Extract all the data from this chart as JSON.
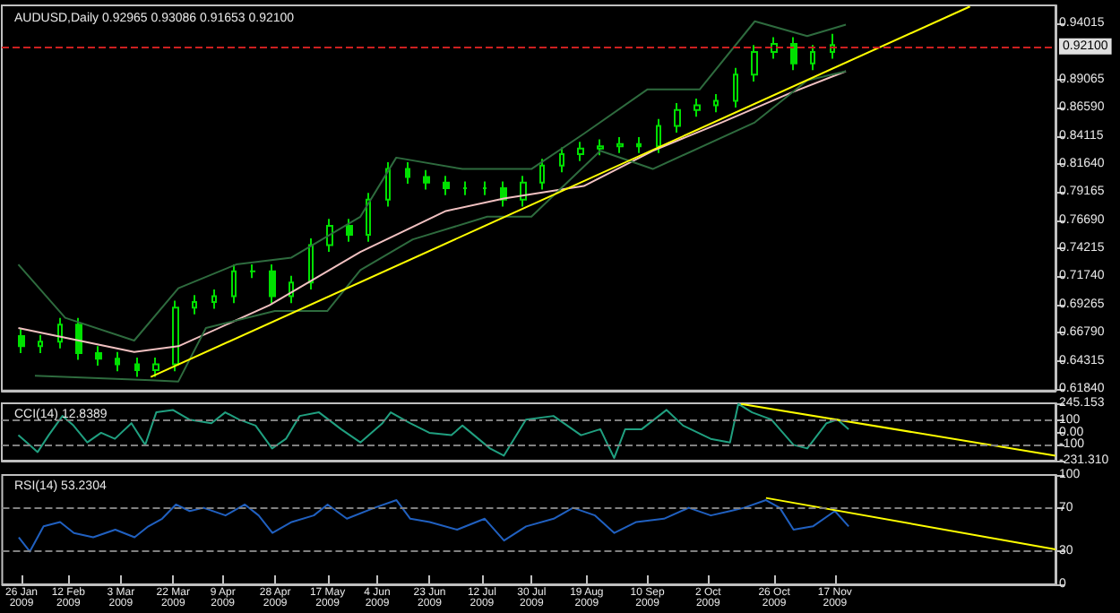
{
  "chart_data": [
    {
      "type": "candlestick",
      "title": "AUDUSD,Daily 0.92965 0.93086 0.91653 0.92100",
      "color": "#00e000",
      "x": [
        "2009-01-26",
        "2009-02-02",
        "2009-02-09",
        "2009-02-16",
        "2009-02-23",
        "2009-03-02",
        "2009-03-09",
        "2009-03-16",
        "2009-03-23",
        "2009-03-30",
        "2009-04-06",
        "2009-04-13",
        "2009-04-20",
        "2009-04-27",
        "2009-05-04",
        "2009-05-11",
        "2009-05-18",
        "2009-05-25",
        "2009-06-01",
        "2009-06-08",
        "2009-06-15",
        "2009-06-22",
        "2009-06-29",
        "2009-07-06",
        "2009-07-13",
        "2009-07-20",
        "2009-07-27",
        "2009-08-03",
        "2009-08-10",
        "2009-08-17",
        "2009-08-24",
        "2009-08-31",
        "2009-09-07",
        "2009-09-14",
        "2009-09-21",
        "2009-09-28",
        "2009-10-05",
        "2009-10-12",
        "2009-10-19",
        "2009-10-26",
        "2009-11-02",
        "2009-11-09",
        "2009-11-16"
      ],
      "ohlc": [
        [
          0.665,
          0.671,
          0.65,
          0.656
        ],
        [
          0.656,
          0.666,
          0.65,
          0.66
        ],
        [
          0.66,
          0.681,
          0.654,
          0.675
        ],
        [
          0.675,
          0.681,
          0.644,
          0.65
        ],
        [
          0.65,
          0.656,
          0.639,
          0.645
        ],
        [
          0.645,
          0.651,
          0.634,
          0.64
        ],
        [
          0.64,
          0.646,
          0.629,
          0.635
        ],
        [
          0.635,
          0.646,
          0.629,
          0.64
        ],
        [
          0.64,
          0.696,
          0.634,
          0.69
        ],
        [
          0.69,
          0.701,
          0.684,
          0.695
        ],
        [
          0.695,
          0.706,
          0.689,
          0.7
        ],
        [
          0.7,
          0.728,
          0.694,
          0.722
        ],
        [
          0.722,
          0.728,
          0.716,
          0.722
        ],
        [
          0.722,
          0.728,
          0.694,
          0.7
        ],
        [
          0.7,
          0.718,
          0.694,
          0.712
        ],
        [
          0.712,
          0.751,
          0.706,
          0.745
        ],
        [
          0.745,
          0.768,
          0.739,
          0.762
        ],
        [
          0.762,
          0.768,
          0.748,
          0.754
        ],
        [
          0.754,
          0.791,
          0.748,
          0.785
        ],
        [
          0.785,
          0.818,
          0.779,
          0.812
        ],
        [
          0.812,
          0.818,
          0.799,
          0.805
        ],
        [
          0.805,
          0.811,
          0.794,
          0.8
        ],
        [
          0.8,
          0.806,
          0.789,
          0.795
        ],
        [
          0.795,
          0.801,
          0.789,
          0.795
        ],
        [
          0.795,
          0.801,
          0.789,
          0.795
        ],
        [
          0.795,
          0.801,
          0.779,
          0.785
        ],
        [
          0.785,
          0.806,
          0.779,
          0.8
        ],
        [
          0.8,
          0.821,
          0.794,
          0.815
        ],
        [
          0.815,
          0.831,
          0.809,
          0.825
        ],
        [
          0.825,
          0.836,
          0.819,
          0.83
        ],
        [
          0.83,
          0.838,
          0.824,
          0.832
        ],
        [
          0.832,
          0.84,
          0.826,
          0.834
        ],
        [
          0.834,
          0.84,
          0.826,
          0.832
        ],
        [
          0.832,
          0.856,
          0.826,
          0.85
        ],
        [
          0.85,
          0.87,
          0.844,
          0.864
        ],
        [
          0.864,
          0.874,
          0.858,
          0.868
        ],
        [
          0.868,
          0.878,
          0.862,
          0.872
        ],
        [
          0.872,
          0.901,
          0.866,
          0.895
        ],
        [
          0.895,
          0.921,
          0.889,
          0.915
        ],
        [
          0.915,
          0.928,
          0.909,
          0.922
        ],
        [
          0.922,
          0.928,
          0.899,
          0.905
        ],
        [
          0.905,
          0.921,
          0.899,
          0.915
        ],
        [
          0.915,
          0.931,
          0.909,
          0.921
        ]
      ],
      "series": [
        {
          "type": "line",
          "color": "#f0c0c0",
          "x": [
            "2009-01-25",
            "2009-03-08",
            "2009-03-24",
            "2009-04-26",
            "2009-05-29",
            "2009-06-29",
            "2009-07-20",
            "2009-08-18",
            "2009-09-12",
            "2009-10-07",
            "2009-11-01",
            "2009-11-21"
          ],
          "values": [
            0.672,
            0.651,
            0.656,
            0.692,
            0.739,
            0.775,
            0.786,
            0.797,
            0.828,
            0.853,
            0.879,
            0.898
          ]
        },
        {
          "type": "line",
          "color": "#2e6b3e",
          "x": [
            "2009-01-25",
            "2009-02-11",
            "2009-03-08",
            "2009-03-24",
            "2009-04-14",
            "2009-05-04",
            "2009-05-29",
            "2009-06-11",
            "2009-07-05",
            "2009-07-30",
            "2009-08-18",
            "2009-09-10",
            "2009-09-29",
            "2009-10-19",
            "2009-11-07",
            "2009-11-21"
          ],
          "values": [
            0.728,
            0.681,
            0.661,
            0.707,
            0.728,
            0.734,
            0.77,
            0.822,
            0.812,
            0.812,
            0.843,
            0.882,
            0.882,
            0.942,
            0.929,
            0.939
          ]
        },
        {
          "type": "line",
          "color": "#2e6b3e",
          "x": [
            "2009-01-31",
            "2009-03-14",
            "2009-03-24",
            "2009-04-03",
            "2009-04-28",
            "2009-05-17",
            "2009-05-29",
            "2009-06-17",
            "2009-07-14",
            "2009-07-30",
            "2009-08-24",
            "2009-09-12",
            "2009-10-19",
            "2009-11-07",
            "2009-11-21"
          ],
          "values": [
            0.63,
            0.626,
            0.625,
            0.672,
            0.687,
            0.687,
            0.723,
            0.75,
            0.77,
            0.77,
            0.828,
            0.812,
            0.853,
            0.89,
            0.898
          ]
        },
        {
          "type": "line",
          "color": "#ffff00",
          "x": [
            "2009-03-14",
            "2010-01-05"
          ],
          "values": [
            0.629,
            0.955
          ]
        }
      ],
      "xlim": [
        "2009-01-19",
        "2010-02-05"
      ],
      "ylim": [
        0.617,
        0.956
      ],
      "yticks": [
        {
          "value": 0.94015,
          "label": "0.94015"
        },
        {
          "value": 0.89065,
          "label": "0.89065"
        },
        {
          "value": 0.8659,
          "label": "0.86590"
        },
        {
          "value": 0.84115,
          "label": "0.84115"
        },
        {
          "value": 0.8164,
          "label": "0.81640"
        },
        {
          "value": 0.79165,
          "label": "0.79165"
        },
        {
          "value": 0.7669,
          "label": "0.76690"
        },
        {
          "value": 0.74215,
          "label": "0.74215"
        },
        {
          "value": 0.7174,
          "label": "0.71740"
        },
        {
          "value": 0.69265,
          "label": "0.69265"
        },
        {
          "value": 0.6679,
          "label": "0.66790"
        },
        {
          "value": 0.64315,
          "label": "0.64315"
        },
        {
          "value": 0.6184,
          "label": "0.61840"
        }
      ],
      "ref_lines": [
        {
          "axis": "y",
          "value": 0.921,
          "label": "0.92100",
          "color": "#cc2020",
          "line_style": "dashed"
        }
      ],
      "tick_labels": "y"
    },
    {
      "type": "line",
      "title": "CCI(14) 12.8389",
      "x": [
        "2009-01-25",
        "2009-01-29",
        "2009-02-01",
        "2009-02-05",
        "2009-02-10",
        "2009-02-14",
        "2009-02-19",
        "2009-02-24",
        "2009-03-01",
        "2009-03-07",
        "2009-03-12",
        "2009-03-16",
        "2009-03-22",
        "2009-03-28",
        "2009-04-05",
        "2009-04-10",
        "2009-04-15",
        "2009-04-21",
        "2009-04-27",
        "2009-05-02",
        "2009-05-07",
        "2009-05-14",
        "2009-05-22",
        "2009-05-29",
        "2009-06-06",
        "2009-06-09",
        "2009-06-16",
        "2009-06-23",
        "2009-07-01",
        "2009-07-05",
        "2009-07-15",
        "2009-07-20",
        "2009-07-28",
        "2009-08-07",
        "2009-08-17",
        "2009-08-24",
        "2009-08-29",
        "2009-09-02",
        "2009-09-08",
        "2009-09-17",
        "2009-09-23",
        "2009-10-03",
        "2009-10-10",
        "2009-10-13",
        "2009-10-18",
        "2009-10-25",
        "2009-11-02",
        "2009-11-07",
        "2009-11-14",
        "2009-11-18",
        "2009-11-22"
      ],
      "series": [
        {
          "color": "#20a080",
          "values": [
            -20,
            -100,
            -160,
            -20,
            140,
            60,
            -80,
            0,
            -50,
            80,
            -100,
            170,
            190,
            110,
            80,
            170,
            110,
            60,
            -130,
            -50,
            140,
            170,
            30,
            -80,
            80,
            170,
            80,
            0,
            -20,
            60,
            -130,
            -190,
            110,
            140,
            -20,
            30,
            -210,
            30,
            30,
            190,
            60,
            -50,
            -80,
            240,
            170,
            110,
            -100,
            -130,
            80,
            110,
            30
          ]
        },
        {
          "color": "#ffff00",
          "x": [
            "2009-10-14",
            "2010-02-05"
          ],
          "values": [
            240,
            -190
          ]
        }
      ],
      "xlim": [
        "2009-01-19",
        "2010-02-05"
      ],
      "ylim": [
        -231.31,
        245.153
      ],
      "yticks": [
        {
          "value": 245.153,
          "label": "245.153"
        },
        100,
        {
          "value": 0,
          "label": "0.00"
        },
        -100,
        {
          "value": -231.31,
          "label": "-231.310"
        }
      ],
      "ref_lines": [
        {
          "axis": "y",
          "value": 100,
          "color": "#808080",
          "line_style": "dashed"
        },
        {
          "axis": "y",
          "value": -100,
          "color": "#808080",
          "line_style": "dashed"
        }
      ],
      "tick_labels": "y"
    },
    {
      "type": "line",
      "title": "RSI(14) 53.2304",
      "x": [
        "2009-01-25",
        "2009-01-29",
        "2009-02-03",
        "2009-02-09",
        "2009-02-14",
        "2009-02-21",
        "2009-03-01",
        "2009-03-08",
        "2009-03-13",
        "2009-03-18",
        "2009-03-23",
        "2009-03-28",
        "2009-04-02",
        "2009-04-10",
        "2009-04-17",
        "2009-04-22",
        "2009-04-27",
        "2009-05-04",
        "2009-05-12",
        "2009-05-17",
        "2009-05-24",
        "2009-06-03",
        "2009-06-11",
        "2009-06-16",
        "2009-06-23",
        "2009-07-03",
        "2009-07-13",
        "2009-07-20",
        "2009-07-28",
        "2009-08-07",
        "2009-08-14",
        "2009-08-22",
        "2009-08-29",
        "2009-09-06",
        "2009-09-16",
        "2009-09-25",
        "2009-10-03",
        "2009-10-10",
        "2009-10-15",
        "2009-10-23",
        "2009-10-28",
        "2009-11-02",
        "2009-11-09",
        "2009-11-17",
        "2009-11-22"
      ],
      "series": [
        {
          "color": "#2060c0",
          "values": [
            43,
            30,
            53,
            57,
            47,
            43,
            50,
            43,
            53,
            60,
            73,
            67,
            70,
            63,
            73,
            63,
            47,
            57,
            63,
            73,
            60,
            70,
            77,
            60,
            57,
            50,
            60,
            40,
            53,
            60,
            70,
            63,
            47,
            57,
            60,
            70,
            63,
            67,
            70,
            77,
            70,
            50,
            53,
            67,
            53
          ]
        },
        {
          "color": "#ffff00",
          "x": [
            "2009-10-23",
            "2010-02-05"
          ],
          "values": [
            79,
            32
          ]
        }
      ],
      "xlim": [
        "2009-01-19",
        "2010-02-05"
      ],
      "ylim": [
        0,
        100
      ],
      "yticks": [
        100,
        70,
        30,
        0
      ],
      "xticks": [
        {
          "value": "2009-01-26",
          "label": "26 Jan 2009"
        },
        {
          "value": "2009-02-12",
          "label": "12 Feb 2009"
        },
        {
          "value": "2009-03-03",
          "label": "3 Mar 2009"
        },
        {
          "value": "2009-03-22",
          "label": "22 Mar 2009"
        },
        {
          "value": "2009-04-09",
          "label": "9 Apr 2009"
        },
        {
          "value": "2009-04-28",
          "label": "28 Apr 2009"
        },
        {
          "value": "2009-05-17",
          "label": "17 May 2009"
        },
        {
          "value": "2009-06-04",
          "label": "4 Jun 2009"
        },
        {
          "value": "2009-06-23",
          "label": "23 Jun 2009"
        },
        {
          "value": "2009-07-12",
          "label": "12 Jul 2009"
        },
        {
          "value": "2009-07-30",
          "label": "30 Jul 2009"
        },
        {
          "value": "2009-08-19",
          "label": "19 Aug 2009"
        },
        {
          "value": "2009-09-10",
          "label": "10 Sep 2009"
        },
        {
          "value": "2009-10-02",
          "label": "2 Oct 2009"
        },
        {
          "value": "2009-10-26",
          "label": "26 Oct 2009"
        },
        {
          "value": "2009-11-17",
          "label": "17 Nov 2009"
        }
      ],
      "ref_lines": [
        {
          "axis": "y",
          "value": 70,
          "color": "#808080",
          "line_style": "dashed"
        },
        {
          "axis": "y",
          "value": 30,
          "color": "#808080",
          "line_style": "dashed"
        }
      ]
    }
  ]
}
